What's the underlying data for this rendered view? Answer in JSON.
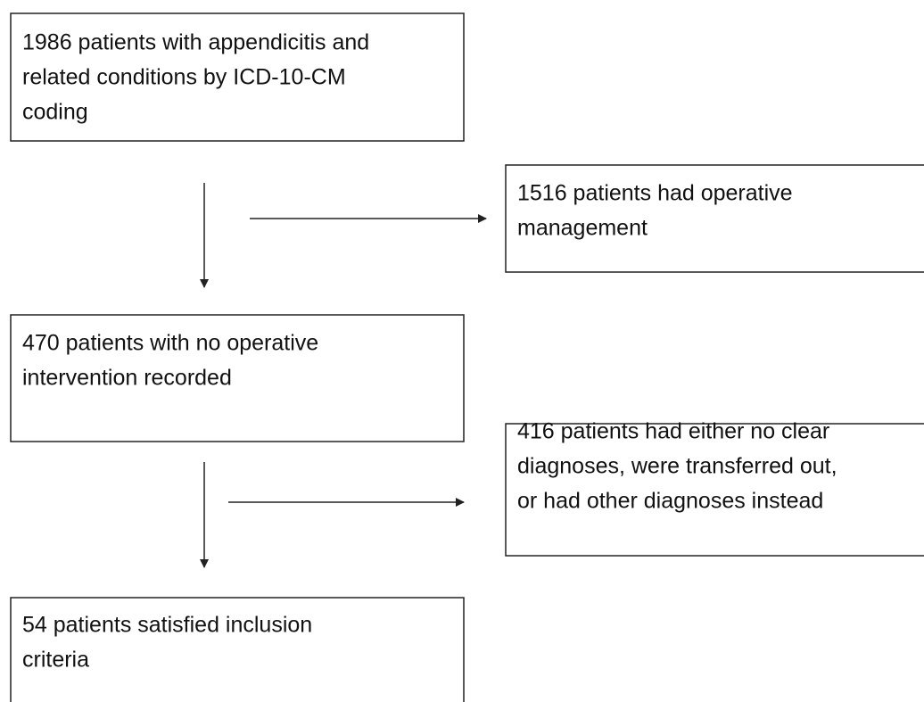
{
  "nodes": [
    {
      "label": [
        "1986 patients with appendicitis and",
        "related conditions by ICD-10-CM",
        "coding"
      ]
    },
    {
      "label": [
        "1516 patients had operative",
        "management"
      ]
    },
    {
      "label": [
        "470 patients with no operative",
        "intervention recorded"
      ]
    },
    {
      "label": [
        "416 patients had either no clear",
        "diagnoses, were transferred out,",
        "or had other diagnoses instead"
      ]
    },
    {
      "label": [
        "54 patients satisfied inclusion",
        "criteria"
      ]
    }
  ]
}
